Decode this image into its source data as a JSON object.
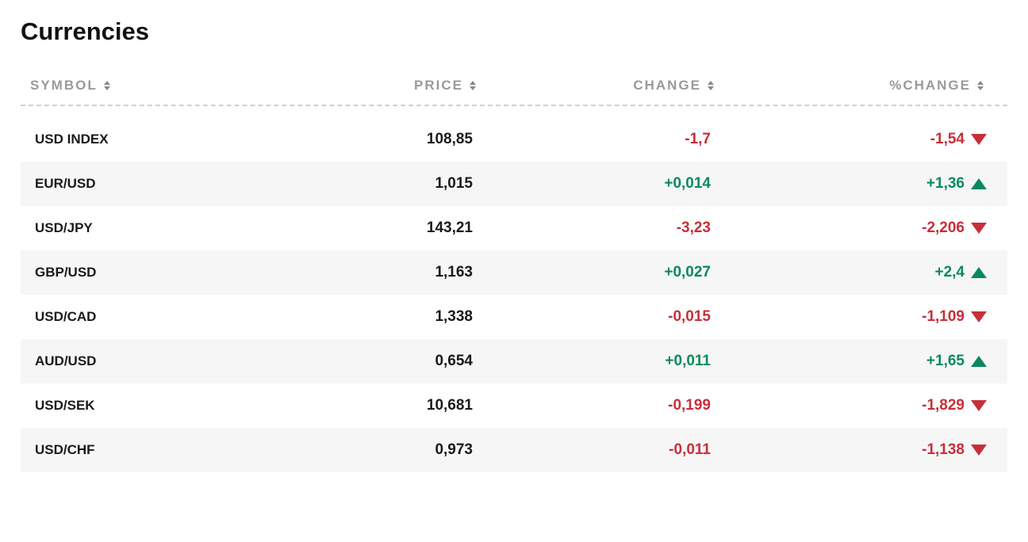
{
  "title": "Currencies",
  "columns": {
    "symbol": "SYMBOL",
    "price": "PRICE",
    "change": "CHANGE",
    "pct": "%CHANGE"
  },
  "colors": {
    "positive": "#098a5b",
    "negative": "#c62f3a",
    "header_text": "#9a9a9a",
    "row_alt_bg": "#f6f6f6",
    "background": "#ffffff"
  },
  "rows": [
    {
      "symbol": "USD INDEX",
      "price": "108,85",
      "change": "-1,7",
      "pct": "-1,54",
      "dir": "down"
    },
    {
      "symbol": "EUR/USD",
      "price": "1,015",
      "change": "+0,014",
      "pct": "+1,36",
      "dir": "up"
    },
    {
      "symbol": "USD/JPY",
      "price": "143,21",
      "change": "-3,23",
      "pct": "-2,206",
      "dir": "down"
    },
    {
      "symbol": "GBP/USD",
      "price": "1,163",
      "change": "+0,027",
      "pct": "+2,4",
      "dir": "up"
    },
    {
      "symbol": "USD/CAD",
      "price": "1,338",
      "change": "-0,015",
      "pct": "-1,109",
      "dir": "down"
    },
    {
      "symbol": "AUD/USD",
      "price": "0,654",
      "change": "+0,011",
      "pct": "+1,65",
      "dir": "up"
    },
    {
      "symbol": "USD/SEK",
      "price": "10,681",
      "change": "-0,199",
      "pct": "-1,829",
      "dir": "down"
    },
    {
      "symbol": "USD/CHF",
      "price": "0,973",
      "change": "-0,011",
      "pct": "-1,138",
      "dir": "down"
    }
  ]
}
